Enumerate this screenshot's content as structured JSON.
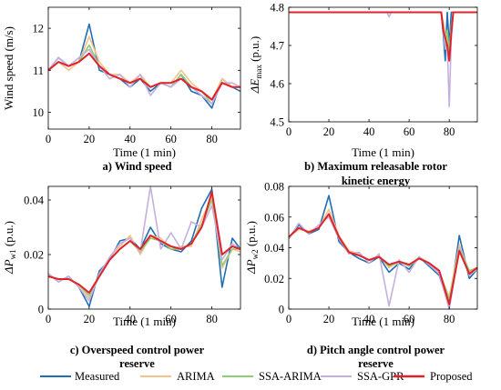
{
  "chart_data": [
    {
      "id": "a",
      "type": "line",
      "caption": "a) Wind speed",
      "xlabel": "Time (1 min)",
      "ylabel": "Wind speed (m/s)",
      "xlim": [
        0,
        94
      ],
      "ylim": [
        9.6,
        12.5
      ],
      "xticks": [
        0,
        20,
        40,
        60,
        80
      ],
      "yticks": [
        10,
        11,
        12
      ],
      "ytick_labels": [
        "10",
        "11",
        "12"
      ],
      "grid": false,
      "x": [
        0,
        5,
        10,
        15,
        20,
        25,
        30,
        35,
        40,
        45,
        50,
        55,
        60,
        65,
        70,
        75,
        80,
        85,
        90,
        94
      ],
      "series": [
        {
          "name": "Measured",
          "values": [
            11.0,
            11.3,
            11.1,
            11.2,
            12.1,
            11.0,
            10.9,
            10.8,
            10.6,
            10.8,
            10.5,
            10.7,
            10.6,
            10.9,
            10.5,
            10.4,
            10.1,
            10.8,
            10.6,
            10.5
          ]
        },
        {
          "name": "ARIMA",
          "values": [
            11.0,
            11.2,
            11.0,
            11.2,
            11.8,
            11.2,
            10.9,
            10.9,
            10.7,
            10.9,
            10.6,
            10.7,
            10.7,
            11.0,
            10.7,
            10.5,
            10.3,
            10.8,
            10.6,
            10.6
          ]
        },
        {
          "name": "SSA-ARIMA",
          "values": [
            11.0,
            11.2,
            11.1,
            11.2,
            11.6,
            11.1,
            10.9,
            10.8,
            10.7,
            10.8,
            10.6,
            10.7,
            10.6,
            10.9,
            10.6,
            10.5,
            10.2,
            10.7,
            10.6,
            10.6
          ]
        },
        {
          "name": "SSA-GPR",
          "values": [
            11.0,
            11.3,
            11.1,
            11.3,
            11.5,
            11.1,
            10.8,
            10.9,
            10.6,
            10.9,
            10.4,
            10.7,
            10.6,
            10.8,
            10.6,
            10.4,
            10.2,
            10.7,
            10.7,
            10.6
          ]
        },
        {
          "name": "Proposed",
          "values": [
            11.0,
            11.2,
            11.1,
            11.2,
            11.4,
            11.1,
            10.9,
            10.8,
            10.7,
            10.8,
            10.6,
            10.7,
            10.7,
            10.8,
            10.6,
            10.5,
            10.3,
            10.7,
            10.6,
            10.6
          ]
        }
      ]
    },
    {
      "id": "b",
      "type": "line",
      "caption": "b) Maximum releasable rotor kinetic energy",
      "caption_lines": [
        "b) Maximum releasable rotor",
        "kinetic energy"
      ],
      "xlabel": "Time (1 min)",
      "ylabel": "ΔEmax (p.u.)",
      "xlim": [
        0,
        94
      ],
      "ylim": [
        4.5,
        4.8
      ],
      "xticks": [
        0,
        20,
        40,
        60,
        80
      ],
      "yticks": [
        4.5,
        4.6,
        4.7,
        4.8
      ],
      "ytick_labels": [
        "4.5",
        "4.6",
        "4.7",
        "4.8"
      ],
      "grid": false,
      "x": [
        0,
        49,
        50,
        51,
        76,
        77,
        78,
        79,
        80,
        81,
        82,
        94
      ],
      "series": [
        {
          "name": "Measured",
          "values": [
            4.787,
            4.787,
            4.787,
            4.787,
            4.787,
            4.73,
            4.66,
            4.787,
            4.7,
            4.787,
            4.787,
            4.787
          ]
        },
        {
          "name": "ARIMA",
          "values": [
            4.787,
            4.787,
            4.787,
            4.787,
            4.787,
            4.76,
            4.73,
            4.72,
            4.69,
            4.74,
            4.787,
            4.787
          ]
        },
        {
          "name": "SSA-ARIMA",
          "values": [
            4.787,
            4.787,
            4.787,
            4.787,
            4.787,
            4.75,
            4.7,
            4.74,
            4.68,
            4.75,
            4.787,
            4.787
          ]
        },
        {
          "name": "SSA-GPR",
          "values": [
            4.787,
            4.787,
            4.775,
            4.787,
            4.787,
            4.74,
            4.69,
            4.7,
            4.54,
            4.72,
            4.787,
            4.787
          ]
        },
        {
          "name": "Proposed",
          "values": [
            4.787,
            4.787,
            4.787,
            4.787,
            4.787,
            4.74,
            4.72,
            4.7,
            4.66,
            4.73,
            4.787,
            4.787
          ]
        }
      ]
    },
    {
      "id": "c",
      "type": "line",
      "caption": "c) Overspeed control power reserve",
      "caption_lines": [
        "c) Overspeed control power",
        "reserve"
      ],
      "xlabel": "Time (1 min)",
      "ylabel": "ΔPw1 (p.u.)",
      "xlim": [
        0,
        94
      ],
      "ylim": [
        0,
        0.045
      ],
      "xticks": [
        0,
        20,
        40,
        60,
        80
      ],
      "yticks": [
        0,
        0.02,
        0.04
      ],
      "ytick_labels": [
        "0",
        "0.02",
        "0.04"
      ],
      "grid": false,
      "x": [
        0,
        5,
        10,
        15,
        20,
        25,
        30,
        35,
        40,
        45,
        50,
        55,
        60,
        65,
        70,
        75,
        80,
        85,
        90,
        94
      ],
      "series": [
        {
          "name": "Measured",
          "values": [
            0.013,
            0.01,
            0.012,
            0.008,
            0.001,
            0.014,
            0.018,
            0.025,
            0.026,
            0.022,
            0.03,
            0.024,
            0.022,
            0.021,
            0.025,
            0.037,
            0.044,
            0.008,
            0.026,
            0.022
          ]
        },
        {
          "name": "ARIMA",
          "values": [
            0.012,
            0.011,
            0.011,
            0.009,
            0.004,
            0.012,
            0.019,
            0.023,
            0.027,
            0.02,
            0.027,
            0.026,
            0.022,
            0.023,
            0.023,
            0.033,
            0.041,
            0.015,
            0.022,
            0.021
          ]
        },
        {
          "name": "SSA-ARIMA",
          "values": [
            0.012,
            0.011,
            0.011,
            0.009,
            0.005,
            0.012,
            0.018,
            0.022,
            0.025,
            0.021,
            0.026,
            0.025,
            0.022,
            0.022,
            0.024,
            0.031,
            0.04,
            0.016,
            0.022,
            0.022
          ]
        },
        {
          "name": "SSA-GPR",
          "values": [
            0.013,
            0.01,
            0.012,
            0.008,
            0.003,
            0.013,
            0.019,
            0.024,
            0.026,
            0.021,
            0.045,
            0.022,
            0.028,
            0.022,
            0.032,
            0.03,
            0.038,
            0.018,
            0.024,
            0.022
          ]
        },
        {
          "name": "Proposed",
          "values": [
            0.012,
            0.011,
            0.011,
            0.009,
            0.006,
            0.012,
            0.018,
            0.022,
            0.025,
            0.022,
            0.027,
            0.025,
            0.023,
            0.022,
            0.024,
            0.03,
            0.043,
            0.02,
            0.023,
            0.022
          ]
        }
      ]
    },
    {
      "id": "d",
      "type": "line",
      "caption": "d) Pitch angle control power reserve",
      "caption_lines": [
        "d) Pitch angle control power",
        "reserve"
      ],
      "xlabel": "Time (1 min)",
      "ylabel": "ΔPw2 (p.u.)",
      "xlim": [
        0,
        94
      ],
      "ylim": [
        0,
        0.08
      ],
      "xticks": [
        0,
        20,
        40,
        60,
        80
      ],
      "yticks": [
        0,
        0.02,
        0.04,
        0.06,
        0.08
      ],
      "ytick_labels": [
        "0",
        "0.02",
        "0.04",
        "0.06",
        "0.08"
      ],
      "grid": false,
      "x": [
        0,
        5,
        10,
        15,
        20,
        25,
        30,
        35,
        40,
        45,
        50,
        55,
        60,
        65,
        70,
        75,
        80,
        85,
        90,
        94
      ],
      "series": [
        {
          "name": "Measured",
          "values": [
            0.046,
            0.055,
            0.049,
            0.052,
            0.074,
            0.044,
            0.037,
            0.033,
            0.03,
            0.034,
            0.024,
            0.03,
            0.026,
            0.034,
            0.028,
            0.022,
            0.002,
            0.048,
            0.02,
            0.026
          ]
        },
        {
          "name": "ARIMA",
          "values": [
            0.047,
            0.052,
            0.051,
            0.053,
            0.065,
            0.048,
            0.038,
            0.036,
            0.032,
            0.035,
            0.027,
            0.031,
            0.028,
            0.034,
            0.03,
            0.024,
            0.008,
            0.042,
            0.024,
            0.027
          ]
        },
        {
          "name": "SSA-ARIMA",
          "values": [
            0.047,
            0.053,
            0.05,
            0.053,
            0.062,
            0.047,
            0.037,
            0.035,
            0.032,
            0.034,
            0.028,
            0.031,
            0.028,
            0.033,
            0.03,
            0.025,
            0.006,
            0.04,
            0.025,
            0.027
          ]
        },
        {
          "name": "SSA-GPR",
          "values": [
            0.046,
            0.056,
            0.049,
            0.055,
            0.06,
            0.046,
            0.036,
            0.037,
            0.03,
            0.036,
            0.002,
            0.032,
            0.024,
            0.034,
            0.029,
            0.023,
            0.0,
            0.04,
            0.022,
            0.026
          ]
        },
        {
          "name": "Proposed",
          "values": [
            0.047,
            0.053,
            0.05,
            0.053,
            0.062,
            0.047,
            0.037,
            0.035,
            0.032,
            0.034,
            0.029,
            0.031,
            0.029,
            0.033,
            0.03,
            0.025,
            0.003,
            0.038,
            0.023,
            0.027
          ]
        }
      ]
    }
  ],
  "legend": {
    "entries": [
      {
        "name": "Measured",
        "color": "#1f6fb4"
      },
      {
        "name": "ARIMA",
        "color": "#f5c28a"
      },
      {
        "name": "SSA-ARIMA",
        "color": "#8fcd72"
      },
      {
        "name": "SSA-GPR",
        "color": "#c5b0dd"
      },
      {
        "name": "Proposed",
        "color": "#e0232b"
      }
    ]
  }
}
